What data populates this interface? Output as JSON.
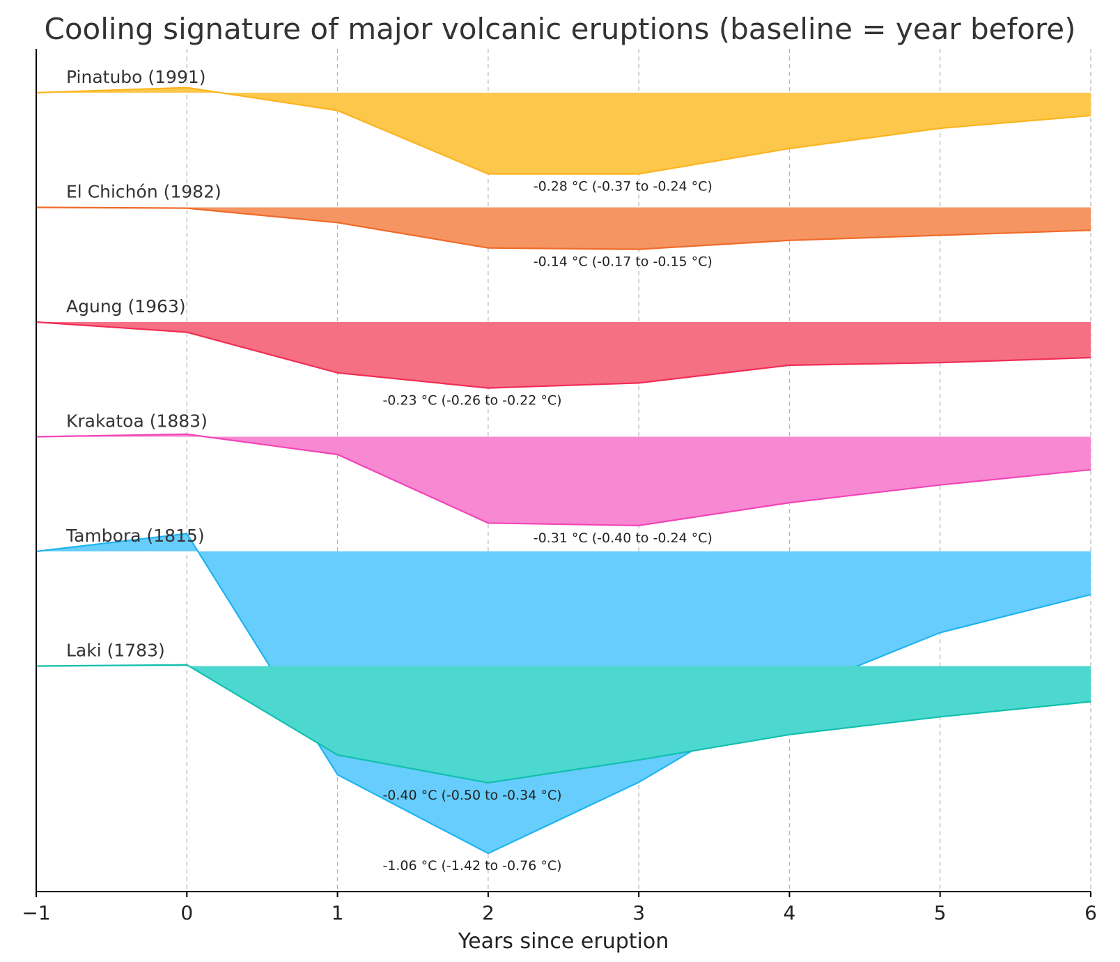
{
  "chart_data": {
    "type": "area",
    "title": "Cooling signature of major volcanic eruptions (baseline = year before)",
    "xlabel": "Years since eruption",
    "ylabel": "",
    "x": [
      -1,
      0,
      1,
      2,
      3,
      4,
      5,
      6
    ],
    "xlim": [
      -1,
      6
    ],
    "x_ticks": [
      "−1",
      "0",
      "1",
      "2",
      "3",
      "4",
      "5",
      "6"
    ],
    "grid": "vertical dashed",
    "y_ticks_shown": false,
    "layout": "stacked ridgeline, one band per eruption, offset vertically",
    "series": [
      {
        "name": "Pinatubo (1991)",
        "color": "#fbb41f",
        "fill": "#fdc74c",
        "values": [
          0.0,
          0.02,
          -0.07,
          -0.32,
          -0.32,
          -0.22,
          -0.14,
          -0.09
        ],
        "annotation": "-0.28 °C (-0.37 to -0.24 °C)",
        "annotation_x": 2.3
      },
      {
        "name": "El Chichón (1982)",
        "color": "#f06a2a",
        "fill": "#f59562",
        "values": [
          0.0,
          -0.003,
          -0.06,
          -0.16,
          -0.165,
          -0.13,
          -0.11,
          -0.09
        ],
        "annotation": "-0.14 °C (-0.17 to -0.15 °C)",
        "annotation_x": 2.3
      },
      {
        "name": "Agung (1963)",
        "color": "#f02d55",
        "fill": "#f67084",
        "values": [
          0.0,
          -0.04,
          -0.2,
          -0.26,
          -0.24,
          -0.17,
          -0.16,
          -0.14
        ],
        "annotation": "-0.23 °C (-0.26 to -0.22 °C)",
        "annotation_x": 1.3
      },
      {
        "name": "Krakatoa (1883)",
        "color": "#f245b6",
        "fill": "#f888d2",
        "values": [
          0.0,
          0.01,
          -0.07,
          -0.34,
          -0.35,
          -0.26,
          -0.19,
          -0.13
        ],
        "annotation": "-0.31 °C (-0.40 to -0.24 °C)",
        "annotation_x": 2.3
      },
      {
        "name": "Tambora (1815)",
        "color": "#1eb4f1",
        "fill": "#66cdfc",
        "values": [
          0.0,
          0.07,
          -0.88,
          -1.19,
          -0.91,
          -0.56,
          -0.32,
          -0.17
        ],
        "annotation": "-1.06 °C (-1.42 to -0.76 °C)",
        "annotation_x": 1.3
      },
      {
        "name": "Laki (1783)",
        "color": "#11bfad",
        "fill": "#4cd8cf",
        "values": [
          0.0,
          0.005,
          -0.35,
          -0.46,
          -0.37,
          -0.27,
          -0.2,
          -0.14
        ],
        "annotation": "-0.40 °C (-0.50 to -0.34 °C)",
        "annotation_x": 1.3
      }
    ]
  }
}
